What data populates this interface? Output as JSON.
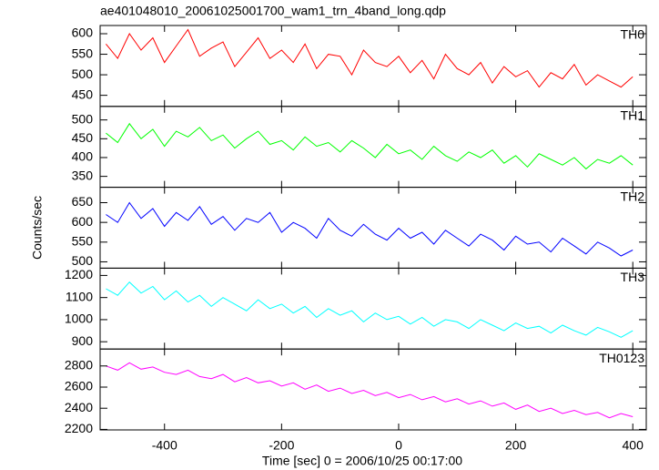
{
  "chart_data": [
    {
      "type": "line",
      "title": "ae401048010_20061025001700_wam1_trn_4band_long.qdp",
      "x": [
        -500,
        -480,
        -460,
        -440,
        -420,
        -400,
        -380,
        -360,
        -340,
        -320,
        -300,
        -280,
        -260,
        -240,
        -220,
        -200,
        -180,
        -160,
        -140,
        -120,
        -100,
        -80,
        -60,
        -40,
        -20,
        0,
        20,
        40,
        60,
        80,
        100,
        120,
        140,
        160,
        180,
        200,
        220,
        240,
        260,
        280,
        300,
        320,
        340,
        360,
        380,
        400
      ],
      "series": [
        {
          "name": "TH0",
          "color": "#ff0000",
          "values": [
            575,
            540,
            600,
            560,
            590,
            530,
            570,
            610,
            545,
            565,
            580,
            520,
            555,
            590,
            540,
            560,
            530,
            575,
            515,
            550,
            545,
            500,
            560,
            530,
            520,
            545,
            505,
            535,
            490,
            550,
            515,
            500,
            530,
            480,
            520,
            495,
            510,
            470,
            505,
            490,
            525,
            475,
            500,
            485,
            470,
            495
          ]
        }
      ],
      "xlim": [
        -510,
        423
      ],
      "ylim": [
        423,
        620
      ],
      "yticks": [
        450,
        500,
        550,
        600
      ]
    },
    {
      "type": "line",
      "x": [
        -500,
        -480,
        -460,
        -440,
        -420,
        -400,
        -380,
        -360,
        -340,
        -320,
        -300,
        -280,
        -260,
        -240,
        -220,
        -200,
        -180,
        -160,
        -140,
        -120,
        -100,
        -80,
        -60,
        -40,
        -20,
        0,
        20,
        40,
        60,
        80,
        100,
        120,
        140,
        160,
        180,
        200,
        220,
        240,
        260,
        280,
        300,
        320,
        340,
        360,
        380,
        400
      ],
      "series": [
        {
          "name": "TH1",
          "color": "#00ff00",
          "values": [
            465,
            440,
            490,
            450,
            475,
            430,
            470,
            455,
            480,
            445,
            460,
            425,
            450,
            470,
            435,
            445,
            420,
            455,
            430,
            440,
            415,
            445,
            425,
            400,
            435,
            410,
            420,
            395,
            430,
            405,
            390,
            415,
            400,
            420,
            385,
            405,
            375,
            410,
            395,
            380,
            400,
            370,
            395,
            385,
            405,
            380
          ]
        }
      ],
      "xlim": [
        -510,
        423
      ],
      "ylim": [
        321,
        536
      ],
      "yticks": [
        350,
        400,
        450,
        500
      ]
    },
    {
      "type": "line",
      "ylabel": "Counts/sec",
      "x": [
        -500,
        -480,
        -460,
        -440,
        -420,
        -400,
        -380,
        -360,
        -340,
        -320,
        -300,
        -280,
        -260,
        -240,
        -220,
        -200,
        -180,
        -160,
        -140,
        -120,
        -100,
        -80,
        -60,
        -40,
        -20,
        0,
        20,
        40,
        60,
        80,
        100,
        120,
        140,
        160,
        180,
        200,
        220,
        240,
        260,
        280,
        300,
        320,
        340,
        360,
        380,
        400
      ],
      "series": [
        {
          "name": "TH2",
          "color": "#0000ff",
          "values": [
            620,
            600,
            650,
            610,
            635,
            590,
            625,
            605,
            640,
            595,
            615,
            580,
            610,
            600,
            625,
            575,
            600,
            585,
            560,
            610,
            580,
            565,
            595,
            570,
            555,
            585,
            560,
            575,
            545,
            580,
            560,
            540,
            570,
            555,
            530,
            565,
            545,
            550,
            525,
            560,
            540,
            520,
            550,
            535,
            515,
            530
          ]
        }
      ],
      "xlim": [
        -510,
        423
      ],
      "ylim": [
        484,
        689
      ],
      "yticks": [
        500,
        550,
        600,
        650
      ]
    },
    {
      "type": "line",
      "x": [
        -500,
        -480,
        -460,
        -440,
        -420,
        -400,
        -380,
        -360,
        -340,
        -320,
        -300,
        -280,
        -260,
        -240,
        -220,
        -200,
        -180,
        -160,
        -140,
        -120,
        -100,
        -80,
        -60,
        -40,
        -20,
        0,
        20,
        40,
        60,
        80,
        100,
        120,
        140,
        160,
        180,
        200,
        220,
        240,
        260,
        280,
        300,
        320,
        340,
        360,
        380,
        400
      ],
      "series": [
        {
          "name": "TH3",
          "color": "#00ffff",
          "values": [
            1140,
            1110,
            1170,
            1120,
            1150,
            1090,
            1130,
            1080,
            1110,
            1060,
            1100,
            1070,
            1040,
            1090,
            1050,
            1070,
            1030,
            1060,
            1010,
            1050,
            1020,
            1040,
            990,
            1030,
            1000,
            1015,
            980,
            1010,
            970,
            1000,
            990,
            960,
            1000,
            975,
            950,
            985,
            960,
            970,
            940,
            975,
            950,
            930,
            965,
            945,
            920,
            950
          ]
        }
      ],
      "xlim": [
        -510,
        423
      ],
      "ylim": [
        867,
        1233
      ],
      "yticks": [
        900,
        1000,
        1100,
        1200
      ]
    },
    {
      "type": "line",
      "xlabel": "Time [sec] 0 = 2006/10/25 00:17:00",
      "x": [
        -500,
        -480,
        -460,
        -440,
        -420,
        -400,
        -380,
        -360,
        -340,
        -320,
        -300,
        -280,
        -260,
        -240,
        -220,
        -200,
        -180,
        -160,
        -140,
        -120,
        -100,
        -80,
        -60,
        -40,
        -20,
        0,
        20,
        40,
        60,
        80,
        100,
        120,
        140,
        160,
        180,
        200,
        220,
        240,
        260,
        280,
        300,
        320,
        340,
        360,
        380,
        400
      ],
      "series": [
        {
          "name": "TH0123",
          "color": "#ff00ff",
          "values": [
            2800,
            2760,
            2830,
            2770,
            2790,
            2740,
            2720,
            2760,
            2700,
            2680,
            2720,
            2650,
            2690,
            2640,
            2660,
            2610,
            2640,
            2580,
            2620,
            2560,
            2590,
            2540,
            2570,
            2520,
            2550,
            2500,
            2530,
            2480,
            2510,
            2460,
            2490,
            2440,
            2470,
            2420,
            2450,
            2390,
            2430,
            2370,
            2400,
            2350,
            2380,
            2340,
            2360,
            2310,
            2350,
            2320
          ]
        }
      ],
      "xlim": [
        -510,
        423
      ],
      "ylim": [
        2195,
        2960
      ],
      "yticks": [
        2200,
        2400,
        2600,
        2800
      ],
      "xticks": [
        -400,
        -200,
        0,
        200,
        400
      ]
    }
  ]
}
